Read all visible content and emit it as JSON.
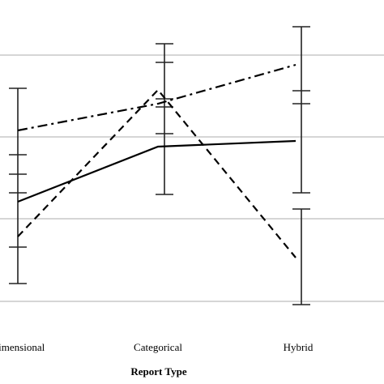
{
  "chart_data": {
    "type": "line",
    "title": "",
    "xlabel": "Report Type",
    "ylabel": "",
    "categories": [
      "Dimensional",
      "Categorical",
      "Hybrid"
    ],
    "ylim": [
      0,
      8
    ],
    "grid": true,
    "gridlines": [
      1,
      2,
      3,
      4,
      5,
      6,
      7
    ],
    "legend": "none",
    "series": [
      {
        "style": "solid",
        "values": [
          4.5,
          6.1,
          6.2
        ],
        "error_low": [
          4.9,
          5.3,
          6.5
        ],
        "error_high": [
          5.8,
          5.7,
          7.0
        ]
      },
      {
        "style": "dashed",
        "values": [
          3.8,
          7.7,
          3.0
        ],
        "error_low": [
          2.9,
          5.2,
          1.0
        ],
        "error_high": [
          4.6,
          6.4,
          2.2
        ]
      },
      {
        "style": "dash-dot",
        "values": [
          6.5,
          7.4,
          8.5
        ],
        "error_low": [
          4.0,
          6.8,
          5.8
        ],
        "error_high": [
          7.2,
          8.1,
          8.6
        ]
      }
    ],
    "error_bars": [
      {
        "category": "Dimensional",
        "low": 3.2,
        "high": 7.6
      },
      {
        "category": "Categorical",
        "low": 5.2,
        "high": 8.7
      },
      {
        "category": "Hybrid",
        "low": 5.3,
        "high": 9.0
      },
      {
        "category": "Hybrid",
        "low": 2.1,
        "high": 5.1
      }
    ]
  }
}
